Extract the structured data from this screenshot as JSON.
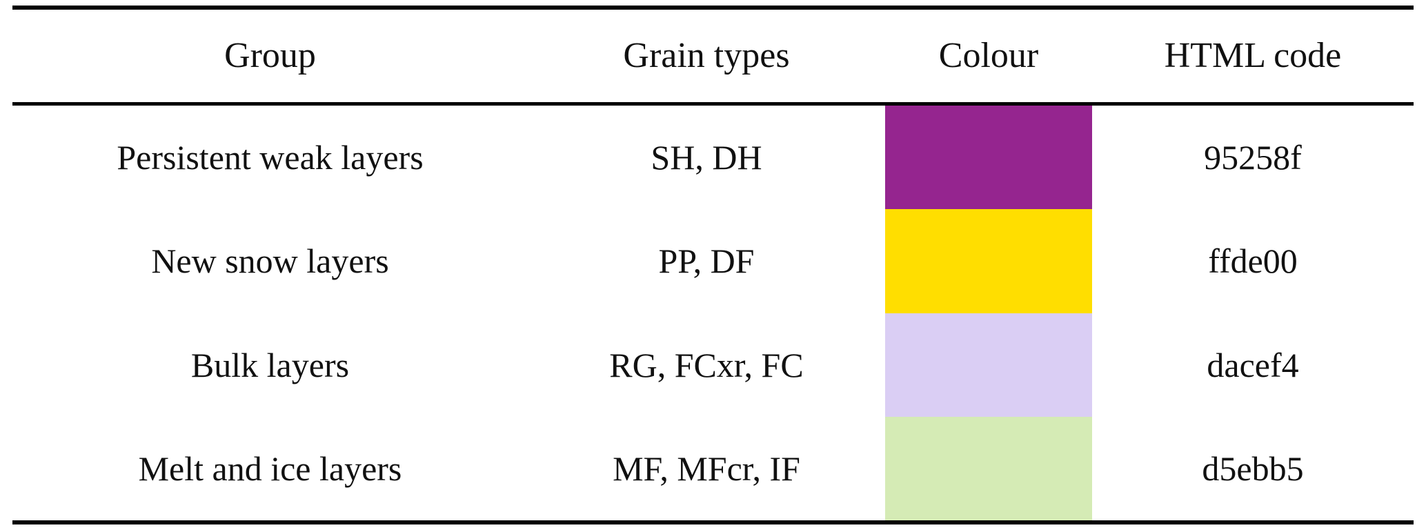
{
  "table": {
    "headers": {
      "group": "Group",
      "grain_types": "Grain types",
      "colour": "Colour",
      "html_code": "HTML code"
    },
    "rows": [
      {
        "group": "Persistent weak layers",
        "grain_types": "SH, DH",
        "swatch_color": "#95258f",
        "html_code": "95258f"
      },
      {
        "group": "New snow layers",
        "grain_types": "PP, DF",
        "swatch_color": "#ffde00",
        "html_code": "ffde00"
      },
      {
        "group": "Bulk layers",
        "grain_types": "RG, FCxr, FC",
        "swatch_color": "#dacef4",
        "html_code": "dacef4"
      },
      {
        "group": "Melt and ice layers",
        "grain_types": "MF, MFcr, IF",
        "swatch_color": "#d5ebb5",
        "html_code": "d5ebb5"
      }
    ]
  }
}
